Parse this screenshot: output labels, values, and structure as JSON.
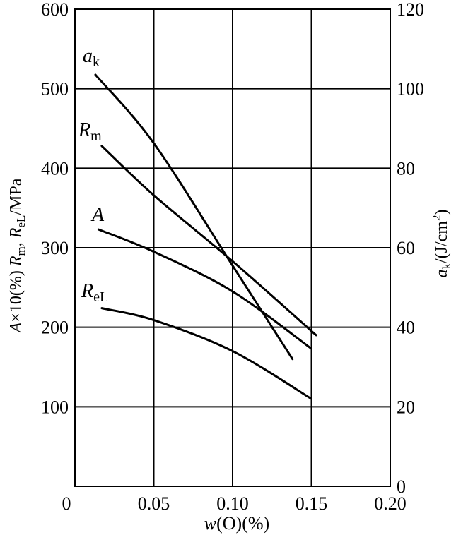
{
  "chart_data": {
    "type": "line",
    "xlabel": {
      "var": "w",
      "rest": "(O)(%)"
    },
    "ylabel_left": "A×10(%)  Rm, ReL/MPa",
    "ylabel_right": "ak/(J/cm2)",
    "xlim": [
      0,
      0.2
    ],
    "ylim_left": [
      0,
      600
    ],
    "ylim_right": [
      0,
      120
    ],
    "x_ticks": [
      "0",
      "0.05",
      "0.10",
      "0.15",
      "0.20"
    ],
    "y_left_ticks": [
      "100",
      "200",
      "300",
      "400",
      "500",
      "600"
    ],
    "y_right_ticks": [
      "0",
      "20",
      "40",
      "60",
      "80",
      "100",
      "120"
    ],
    "grid": true,
    "series": [
      {
        "name": "ak",
        "label_main": "a",
        "label_sub": "k",
        "axis": "right",
        "x": [
          0.013,
          0.05,
          0.1,
          0.138
        ],
        "y": [
          103.5,
          86.3,
          55.5,
          32.0
        ]
      },
      {
        "name": "Rm",
        "label_main": "R",
        "label_sub": "m",
        "axis": "left",
        "x": [
          0.017,
          0.05,
          0.1,
          0.153
        ],
        "y": [
          428,
          366,
          283,
          190
        ]
      },
      {
        "name": "A",
        "label_main": "A",
        "label_sub": "",
        "axis": "left",
        "x": [
          0.015,
          0.05,
          0.1,
          0.15
        ],
        "y": [
          323,
          295,
          245,
          173
        ]
      },
      {
        "name": "ReL",
        "label_main": "R",
        "label_sub": "eL",
        "axis": "left",
        "x": [
          0.017,
          0.05,
          0.1,
          0.15
        ],
        "y": [
          224,
          209,
          170,
          110
        ]
      }
    ]
  }
}
